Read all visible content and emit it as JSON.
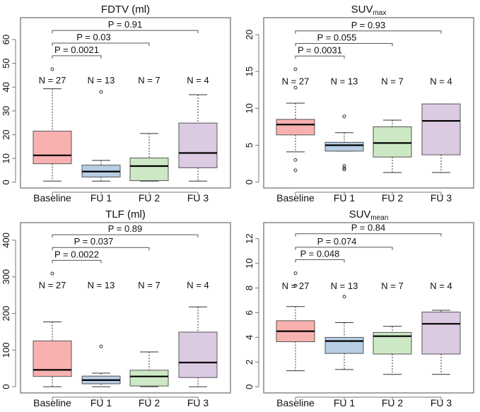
{
  "chart_data": [
    {
      "type": "box",
      "title": "FDTV (ml)",
      "title_sub": "",
      "categories": [
        "Baseline",
        "FU 1",
        "FU 2",
        "FU 3"
      ],
      "ylim": [
        -2.4,
        69.2
      ],
      "yticks": [
        0,
        10,
        20,
        30,
        40,
        50,
        60
      ],
      "boxes": [
        {
          "min": 0.5,
          "q1": 7.8,
          "median": 11.3,
          "q3": 21.5,
          "max": 39.3,
          "outliers": [
            47.5
          ]
        },
        {
          "min": 0.5,
          "q1": 2.2,
          "median": 4.5,
          "q3": 7.2,
          "max": 9.2,
          "outliers": [
            38
          ]
        },
        {
          "min": 0.5,
          "q1": 0.7,
          "median": 6.8,
          "q3": 10.2,
          "max": 20.5,
          "outliers": []
        },
        {
          "min": 0.5,
          "q1": 6.1,
          "median": 12.3,
          "q3": 24.9,
          "max": 36.8,
          "outliers": []
        }
      ],
      "n_labels": [
        "N =  27",
        "N =  13",
        "N =  7",
        "N =  4"
      ],
      "n_y": 43,
      "comparisons": [
        {
          "from": 0,
          "to": 1,
          "label": "P = 0.0021",
          "y": 53.2
        },
        {
          "from": 0,
          "to": 2,
          "label": "P = 0.03",
          "y": 58.5
        },
        {
          "from": 0,
          "to": 3,
          "label": "P = 0.91",
          "y": 63.8
        }
      ]
    },
    {
      "type": "box",
      "title": "SUV",
      "title_sub": "max",
      "categories": [
        "Baseline",
        "FU 1",
        "FU 2",
        "FU 3"
      ],
      "ylim": [
        -0.8,
        22.3
      ],
      "yticks": [
        0,
        5,
        10,
        15,
        20
      ],
      "boxes": [
        {
          "min": 4.1,
          "q1": 6.4,
          "median": 7.8,
          "q3": 8.5,
          "max": 10.7,
          "outliers": [
            15.3,
            12.8,
            3.0,
            1.6
          ]
        },
        {
          "min": 4.2,
          "q1": 4.2,
          "median": 5.0,
          "q3": 5.4,
          "max": 6.7,
          "outliers": [
            8.9,
            2.2,
            1.9,
            1.7
          ]
        },
        {
          "min": 1.3,
          "q1": 3.4,
          "median": 5.3,
          "q3": 7.5,
          "max": 8.4,
          "outliers": []
        },
        {
          "min": 1.3,
          "q1": 3.7,
          "median": 8.3,
          "q3": 10.6,
          "max": 10.6,
          "outliers": []
        }
      ],
      "n_labels": [
        "N =  27",
        "N =  13",
        "N =  7",
        "N =  4"
      ],
      "n_y": 13.7,
      "comparisons": [
        {
          "from": 0,
          "to": 1,
          "label": "P = 0.0031",
          "y": 17.1
        },
        {
          "from": 0,
          "to": 2,
          "label": "P = 0.055",
          "y": 18.8
        },
        {
          "from": 0,
          "to": 3,
          "label": "P = 0.93",
          "y": 20.5
        }
      ]
    },
    {
      "type": "box",
      "title": "TLF (ml)",
      "title_sub": "",
      "categories": [
        "Baseline",
        "FU 1",
        "FU 2",
        "FU 3"
      ],
      "ylim": [
        -17,
        448
      ],
      "yticks": [
        0,
        100,
        200,
        300,
        400
      ],
      "boxes": [
        {
          "min": 0,
          "q1": 28,
          "median": 46,
          "q3": 125,
          "max": 177,
          "outliers": [
            309
          ]
        },
        {
          "min": 0,
          "q1": 8,
          "median": 18,
          "q3": 29,
          "max": 37,
          "outliers": [
            110
          ]
        },
        {
          "min": 0,
          "q1": 2,
          "median": 28,
          "q3": 45,
          "max": 95,
          "outliers": []
        },
        {
          "min": 0,
          "q1": 25,
          "median": 66,
          "q3": 149,
          "max": 218,
          "outliers": []
        }
      ],
      "n_labels": [
        "N =  27",
        "N =  13",
        "N =  7",
        "N =  4"
      ],
      "n_y": 278,
      "comparisons": [
        {
          "from": 0,
          "to": 1,
          "label": "P = 0.0022",
          "y": 345
        },
        {
          "from": 0,
          "to": 2,
          "label": "P = 0.037",
          "y": 380
        },
        {
          "from": 0,
          "to": 3,
          "label": "P = 0.89",
          "y": 415
        }
      ]
    },
    {
      "type": "box",
      "title": "SUV",
      "title_sub": "mean",
      "categories": [
        "Baseline",
        "FU 1",
        "FU 2",
        "FU 3"
      ],
      "ylim": [
        -0.5,
        13.3
      ],
      "yticks": [
        0,
        2,
        4,
        6,
        8,
        10,
        12
      ],
      "boxes": [
        {
          "min": 1.3,
          "q1": 3.65,
          "median": 4.5,
          "q3": 5.35,
          "max": 6.5,
          "outliers": [
            9.2,
            8.2
          ]
        },
        {
          "min": 1.4,
          "q1": 2.7,
          "median": 3.7,
          "q3": 4.0,
          "max": 5.2,
          "outliers": [
            7.3
          ]
        },
        {
          "min": 1.0,
          "q1": 2.65,
          "median": 4.1,
          "q3": 4.4,
          "max": 4.9,
          "outliers": []
        },
        {
          "min": 1.0,
          "q1": 2.65,
          "median": 5.1,
          "q3": 6.05,
          "max": 6.2,
          "outliers": []
        }
      ],
      "n_labels": [
        "N =  27",
        "N =  13",
        "N =  7",
        "N =  4"
      ],
      "n_y": 8.2,
      "comparisons": [
        {
          "from": 0,
          "to": 1,
          "label": "P = 0.048",
          "y": 10.3
        },
        {
          "from": 0,
          "to": 2,
          "label": "P = 0.074",
          "y": 11.3
        },
        {
          "from": 0,
          "to": 3,
          "label": "P = 0.84",
          "y": 12.4
        }
      ]
    }
  ],
  "colors": {
    "box_fills": [
      "#f9b1b0",
      "#b6cde4",
      "#cde8c4",
      "#dccae3"
    ],
    "axis": "#777777",
    "median": "#000000"
  }
}
